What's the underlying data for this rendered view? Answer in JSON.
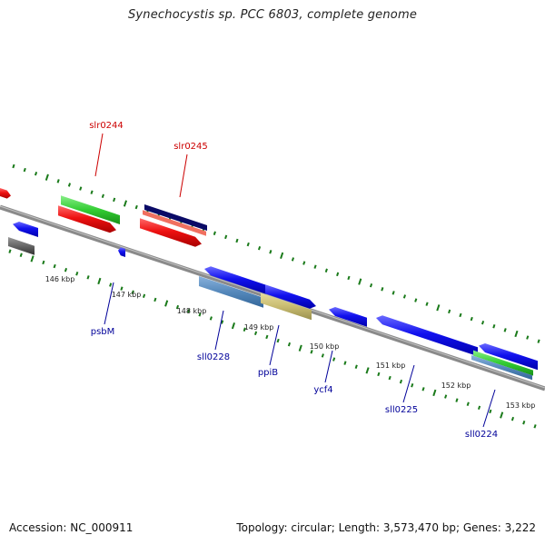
{
  "title": "Synechocystis sp. PCC 6803, complete genome",
  "footer": {
    "accession": "Accession: NC_000911",
    "summary": "Topology: circular; Length: 3,573,470 bp; Genes: 3,222"
  },
  "genes_above": [
    {
      "name": "slr0244",
      "color": "#cc0000"
    },
    {
      "name": "slr0245",
      "color": "#cc0000"
    }
  ],
  "genes_below": [
    {
      "name": "psbM",
      "color": "#000099"
    },
    {
      "name": "sll0228",
      "color": "#000099"
    },
    {
      "name": "ppiB",
      "color": "#000099"
    },
    {
      "name": "ycf4",
      "color": "#000099"
    },
    {
      "name": "sll0225",
      "color": "#000099"
    },
    {
      "name": "sll0224",
      "color": "#000099"
    }
  ],
  "ticks": [
    "146 kbp",
    "147 kbp",
    "148 kbp",
    "149 kbp",
    "150 kbp",
    "151 kbp",
    "152 kbp",
    "153 kbp"
  ],
  "colors": {
    "backbone": "#8a8a8a",
    "forward_cds": "#ee1111",
    "reverse_cds": "#1111ee",
    "gc_skew_dots": "#1a7a1a",
    "feature_green": "#33cc33",
    "feature_navy": "#0a0a66",
    "feature_salmon": "#f07060",
    "feature_steel": "#5588bb",
    "feature_khaki": "#c8bb70",
    "feature_gray": "#666666"
  }
}
